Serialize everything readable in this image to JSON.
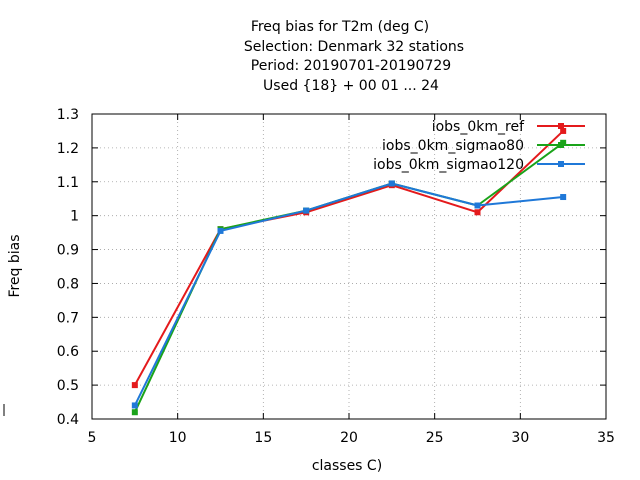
{
  "chart_data": {
    "type": "line",
    "title_lines": [
      "Freq bias  for T2m (deg C)",
      "Selection: Denmark     32 stations",
      "Period: 20190701-20190729",
      "Used {18} + 00 01 ... 24"
    ],
    "xlabel": "classes C)",
    "ylabel": "Freq bias",
    "xlim": [
      5,
      35
    ],
    "ylim": [
      0.4,
      1.3
    ],
    "xticks": [
      "5",
      "10",
      "15",
      "20",
      "25",
      "30",
      "35"
    ],
    "yticks": [
      "0.4",
      "0.5",
      "0.6",
      "0.7",
      "0.8",
      "0.9",
      "1",
      "1.1",
      "1.2",
      "1.3"
    ],
    "grid": true,
    "legend_position": "top-right",
    "series": [
      {
        "name": "iobs_0km_ref",
        "color": "#e41a1c",
        "x": [
          7.5,
          12.5,
          17.5,
          22.5,
          27.5,
          32.5
        ],
        "y": [
          0.5,
          0.96,
          1.01,
          1.09,
          1.01,
          1.25
        ]
      },
      {
        "name": "iobs_0km_sigmao80",
        "color": "#1aa31a",
        "x": [
          7.5,
          12.5,
          17.5,
          22.5,
          27.5,
          32.5
        ],
        "y": [
          0.42,
          0.96,
          1.015,
          1.095,
          1.03,
          1.215
        ]
      },
      {
        "name": "iobs_0km_sigmao120",
        "color": "#1f78d8",
        "x": [
          7.5,
          12.5,
          17.5,
          22.5,
          27.5,
          32.5
        ],
        "y": [
          0.44,
          0.955,
          1.015,
          1.095,
          1.03,
          1.055
        ]
      }
    ]
  }
}
